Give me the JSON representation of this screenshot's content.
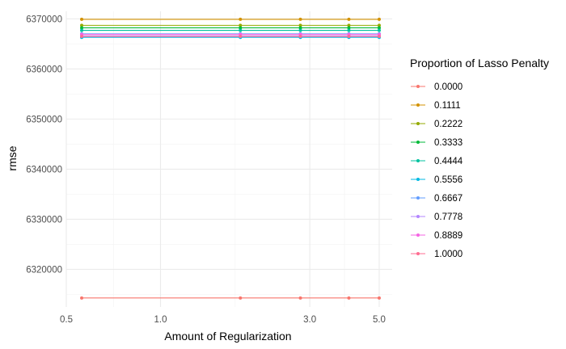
{
  "chart_data": {
    "type": "line",
    "xlabel": "Amount of Regularization",
    "ylabel": "rmse",
    "x_scale": "log10",
    "xlim": [
      0.5,
      5.5
    ],
    "ylim": [
      6312500,
      6371500
    ],
    "x_ticks": [
      0.5,
      1.0,
      3.0,
      5.0
    ],
    "x_tick_labels": [
      "0.5",
      "1.0",
      "3.0",
      "5.0"
    ],
    "y_ticks": [
      6320000,
      6330000,
      6340000,
      6350000,
      6360000,
      6370000
    ],
    "y_tick_labels": [
      "6320000",
      "6330000",
      "6340000",
      "6350000",
      "6360000",
      "6370000"
    ],
    "grid": true,
    "legend": {
      "title": "Proportion of Lasso Penalty",
      "position": "right"
    },
    "x": [
      0.56,
      1.8,
      2.8,
      4.0,
      5.0
    ],
    "series": [
      {
        "name": "0.0000",
        "color": "#F8766D",
        "values": [
          6314300,
          6314300,
          6314300,
          6314300,
          6314300
        ]
      },
      {
        "name": "0.1111",
        "color": "#D39200",
        "values": [
          6369900,
          6369900,
          6369900,
          6369900,
          6369900
        ]
      },
      {
        "name": "0.2222",
        "color": "#93AA00",
        "values": [
          6368700,
          6368700,
          6368700,
          6368700,
          6368700
        ]
      },
      {
        "name": "0.3333",
        "color": "#00BA38",
        "values": [
          6368200,
          6368200,
          6368200,
          6368200,
          6368200
        ]
      },
      {
        "name": "0.4444",
        "color": "#00C19F",
        "values": [
          6367700,
          6367700,
          6367700,
          6367700,
          6367700
        ]
      },
      {
        "name": "0.5556",
        "color": "#00B9E3",
        "values": [
          6366300,
          6366300,
          6366300,
          6366300,
          6366300
        ]
      },
      {
        "name": "0.6667",
        "color": "#619CFF",
        "values": [
          6367000,
          6367000,
          6367000,
          6367000,
          6367000
        ]
      },
      {
        "name": "0.7778",
        "color": "#B385FF",
        "values": [
          6366600,
          6366600,
          6366600,
          6366600,
          6366600
        ]
      },
      {
        "name": "0.8889",
        "color": "#F564E3",
        "values": [
          6366900,
          6366900,
          6366900,
          6366900,
          6366900
        ]
      },
      {
        "name": "1.0000",
        "color": "#FF6C91",
        "values": [
          6366500,
          6366500,
          6366500,
          6366500,
          6366500
        ]
      }
    ]
  }
}
